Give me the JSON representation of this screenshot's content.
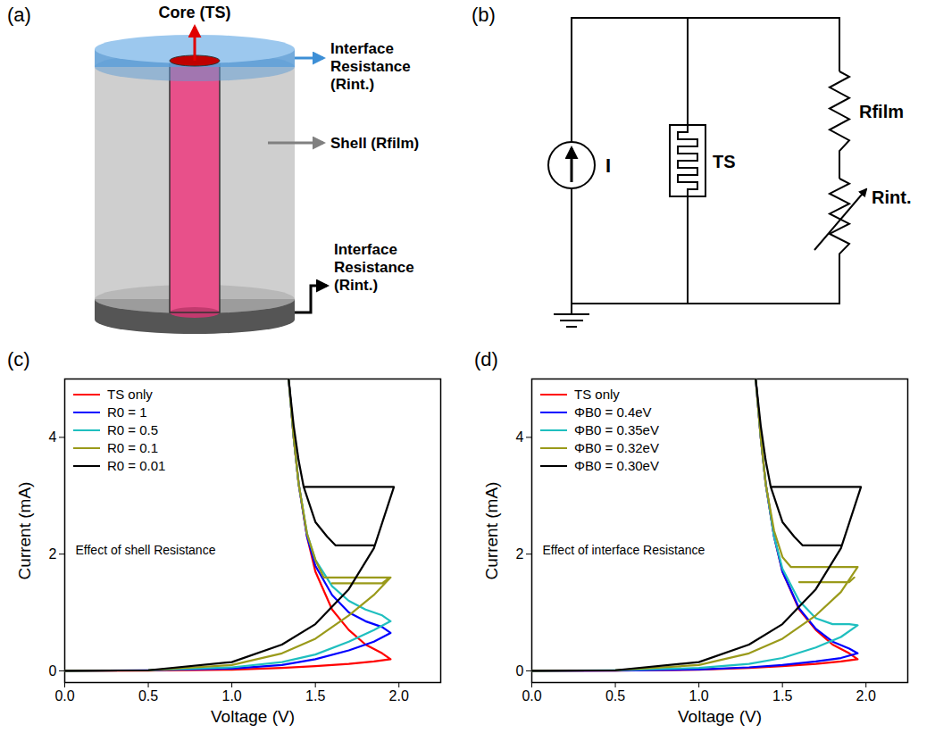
{
  "chart_data": [
    {
      "type": "line",
      "panel_label": "(c)",
      "annotations": [
        "Effect of shell Resistance"
      ],
      "x_label": "Voltage (V)",
      "y_label": "Current (mA)",
      "xlim": [
        0,
        2.25
      ],
      "xticks": [
        {
          "value": 0,
          "label": "0.0"
        },
        {
          "value": 0.5,
          "label": "0.5"
        },
        {
          "value": 1,
          "label": "1.0"
        },
        {
          "value": 1.5,
          "label": "1.5"
        },
        {
          "value": 2,
          "label": "2.0"
        }
      ],
      "ylim": [
        -0.2,
        5.0
      ],
      "yticks": [
        0,
        2,
        4
      ],
      "grid": false,
      "legend": "top-left",
      "series": [
        {
          "name": "TS only",
          "color": "#ff0000",
          "x": [
            0,
            0.5,
            1.0,
            1.3,
            1.5,
            1.7,
            1.85,
            1.95,
            1.9,
            1.8,
            1.7,
            1.6,
            1.5,
            1.45,
            1.4,
            1.37,
            1.34
          ],
          "values": [
            0,
            0.005,
            0.02,
            0.05,
            0.08,
            0.12,
            0.16,
            0.2,
            0.3,
            0.45,
            0.7,
            1.05,
            1.7,
            2.3,
            3.2,
            4.0,
            5.0
          ]
        },
        {
          "name": "R0 = 1",
          "color": "#0000ff",
          "x": [
            0,
            0.5,
            1.0,
            1.3,
            1.5,
            1.7,
            1.85,
            1.95,
            1.9,
            1.8,
            1.7,
            1.6,
            1.5,
            1.45,
            1.4,
            1.37,
            1.34
          ],
          "values": [
            0,
            0.01,
            0.04,
            0.1,
            0.2,
            0.35,
            0.5,
            0.65,
            0.75,
            0.85,
            1.0,
            1.3,
            1.8,
            2.3,
            3.2,
            4.0,
            5.0
          ]
        },
        {
          "name": "R0 = 0.5",
          "color": "#1fbfbf",
          "x": [
            0,
            0.5,
            1.0,
            1.3,
            1.5,
            1.7,
            1.85,
            1.95,
            1.9,
            1.8,
            1.7,
            1.6,
            1.5,
            1.45,
            1.4,
            1.37,
            1.34
          ],
          "values": [
            0,
            0.01,
            0.06,
            0.15,
            0.28,
            0.5,
            0.7,
            0.85,
            0.95,
            1.05,
            1.2,
            1.45,
            1.9,
            2.35,
            3.2,
            4.0,
            5.0
          ]
        },
        {
          "name": "R0 = 0.1",
          "color": "#9a9a1a",
          "x": [
            0,
            0.5,
            1.0,
            1.3,
            1.5,
            1.7,
            1.85,
            1.95,
            1.55,
            1.5,
            1.45,
            1.4,
            1.37,
            1.34,
            null,
            1.6,
            1.9,
            1.93
          ],
          "values": [
            0,
            0.01,
            0.1,
            0.3,
            0.55,
            0.95,
            1.3,
            1.6,
            1.6,
            1.9,
            2.35,
            3.2,
            4.0,
            5.0,
            null,
            1.5,
            1.5,
            1.57
          ]
        },
        {
          "name": "R0 = 0.01",
          "color": "#000000",
          "x": [
            0,
            0.5,
            1.0,
            1.3,
            1.5,
            1.7,
            1.85,
            1.97,
            1.43,
            1.4,
            1.37,
            1.34,
            null,
            1.43,
            1.5,
            1.57,
            1.62,
            1.85
          ],
          "values": [
            0,
            0.01,
            0.15,
            0.45,
            0.8,
            1.4,
            2.1,
            3.15,
            3.15,
            3.6,
            4.2,
            5.0,
            null,
            3.15,
            2.55,
            2.3,
            2.15,
            2.15
          ]
        }
      ]
    },
    {
      "type": "line",
      "panel_label": "(d)",
      "annotations": [
        "Effect of interface Resistance"
      ],
      "x_label": "Voltage (V)",
      "y_label": "Current (mA)",
      "xlim": [
        0,
        2.25
      ],
      "xticks": [
        {
          "value": 0,
          "label": "0.0"
        },
        {
          "value": 0.5,
          "label": "0.5"
        },
        {
          "value": 1,
          "label": "1.0"
        },
        {
          "value": 1.5,
          "label": "1.5"
        },
        {
          "value": 2,
          "label": "2.0"
        }
      ],
      "ylim": [
        -0.2,
        5.0
      ],
      "yticks": [
        0,
        2,
        4
      ],
      "grid": false,
      "legend": "top-left",
      "series": [
        {
          "name": "TS only",
          "color": "#ff0000",
          "x": [
            0,
            0.5,
            1.0,
            1.3,
            1.5,
            1.7,
            1.85,
            1.95,
            1.9,
            1.8,
            1.7,
            1.6,
            1.5,
            1.45,
            1.4,
            1.37,
            1.34
          ],
          "values": [
            0,
            0.005,
            0.02,
            0.05,
            0.08,
            0.12,
            0.16,
            0.2,
            0.3,
            0.45,
            0.7,
            1.05,
            1.7,
            2.3,
            3.2,
            4.0,
            5.0
          ]
        },
        {
          "name": "ΦB0 = 0.4eV",
          "color": "#0000ff",
          "x": [
            0,
            0.5,
            1.0,
            1.3,
            1.5,
            1.7,
            1.85,
            1.95,
            1.9,
            1.8,
            1.7,
            1.6,
            1.5,
            1.45,
            1.4,
            1.37,
            1.34
          ],
          "values": [
            0,
            0.005,
            0.025,
            0.06,
            0.1,
            0.16,
            0.22,
            0.3,
            0.38,
            0.5,
            0.72,
            1.07,
            1.7,
            2.3,
            3.2,
            4.0,
            5.0
          ]
        },
        {
          "name": "ΦB0 = 0.35eV",
          "color": "#1fbfbf",
          "x": [
            0,
            0.5,
            1.0,
            1.3,
            1.5,
            1.7,
            1.85,
            1.95,
            1.9,
            1.8,
            1.7,
            1.6,
            1.5,
            1.45,
            1.4,
            1.37,
            1.34
          ],
          "values": [
            0,
            0.01,
            0.05,
            0.12,
            0.22,
            0.4,
            0.58,
            0.78,
            0.8,
            0.8,
            0.9,
            1.2,
            1.75,
            2.3,
            3.2,
            4.0,
            5.0
          ]
        },
        {
          "name": "ΦB0 = 0.32eV",
          "color": "#9a9a1a",
          "x": [
            0,
            0.5,
            1.0,
            1.3,
            1.5,
            1.7,
            1.85,
            1.95,
            1.55,
            1.5,
            1.45,
            1.4,
            1.37,
            1.34,
            null,
            1.6,
            1.9,
            1.93
          ],
          "values": [
            0,
            0.01,
            0.1,
            0.3,
            0.55,
            0.95,
            1.35,
            1.78,
            1.78,
            1.95,
            2.4,
            3.2,
            4.0,
            5.0,
            null,
            1.52,
            1.52,
            1.6
          ]
        },
        {
          "name": "ΦB0 = 0.30eV",
          "color": "#000000",
          "x": [
            0,
            0.5,
            1.0,
            1.3,
            1.5,
            1.7,
            1.85,
            1.97,
            1.43,
            1.4,
            1.37,
            1.34,
            null,
            1.43,
            1.5,
            1.57,
            1.62,
            1.85
          ],
          "values": [
            0,
            0.01,
            0.15,
            0.45,
            0.8,
            1.4,
            2.1,
            3.15,
            3.15,
            3.6,
            4.2,
            5.0,
            null,
            3.15,
            2.55,
            2.3,
            2.15,
            2.15
          ]
        }
      ]
    }
  ],
  "diagrams": {
    "a": {
      "panel_label": "(a)",
      "core": "Core (TS)",
      "top_interface": [
        "Interface",
        "Resistance",
        "(Rint.)"
      ],
      "shell": "Shell (Rfilm)",
      "bottom_interface": [
        "Interface",
        "Resistance",
        "(Rint.)"
      ]
    },
    "b": {
      "panel_label": "(b)",
      "source": "I",
      "switch": "TS",
      "film_resistor": "Rfilm",
      "interface_resistor": "Rint."
    }
  }
}
